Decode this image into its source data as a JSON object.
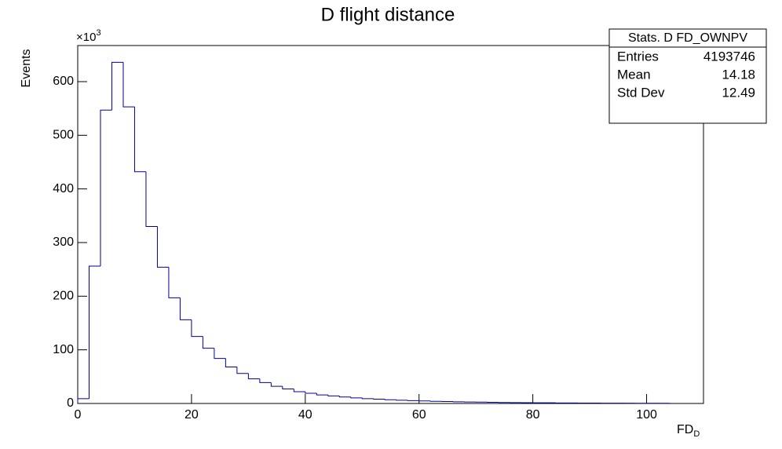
{
  "chart_data": {
    "type": "histogram",
    "title": "D flight distance",
    "xlabel": "FD",
    "xlabel_subscript": "D",
    "ylabel": "Events",
    "y_multiplier": "×10",
    "y_multiplier_exponent": "3",
    "bins": [
      0,
      2,
      4,
      6,
      8,
      10,
      12,
      14,
      16,
      18,
      20,
      22,
      24,
      26,
      28,
      30,
      32,
      34,
      36,
      38,
      40,
      42,
      44,
      46,
      48,
      50,
      52,
      54,
      56,
      58,
      60,
      62,
      64,
      66,
      68,
      70,
      72,
      74,
      76,
      78,
      80,
      82,
      84,
      86,
      88,
      90,
      92,
      94,
      96,
      98,
      100,
      102,
      104
    ],
    "values": [
      9,
      256,
      547,
      636,
      553,
      432,
      330,
      254,
      197,
      156,
      125,
      103,
      84,
      68,
      56,
      46,
      39,
      32,
      27,
      22,
      19,
      16,
      14,
      12,
      10.5,
      9,
      8,
      7,
      6,
      5.3,
      4.7,
      4.1,
      3.6,
      3.2,
      2.8,
      2.5,
      2.2,
      1.9,
      1.7,
      1.5,
      1.3,
      1.2,
      1.0,
      0.9,
      0.8,
      0.7,
      0.6,
      0.5,
      0.5,
      0.4,
      0.4,
      0.3
    ],
    "color": "#000099",
    "xlim": [
      0,
      110
    ],
    "ylim": [
      0,
      667.3
    ],
    "xticks": [
      0,
      20,
      40,
      60,
      80,
      100
    ],
    "yticks": [
      0,
      100,
      200,
      300,
      400,
      500,
      600
    ],
    "stats": {
      "title": "Stats. D FD_OWNPV",
      "rows": [
        [
          "Entries",
          "4193746"
        ],
        [
          "Mean",
          "14.18"
        ],
        [
          "Std Dev",
          "12.49"
        ]
      ]
    }
  }
}
